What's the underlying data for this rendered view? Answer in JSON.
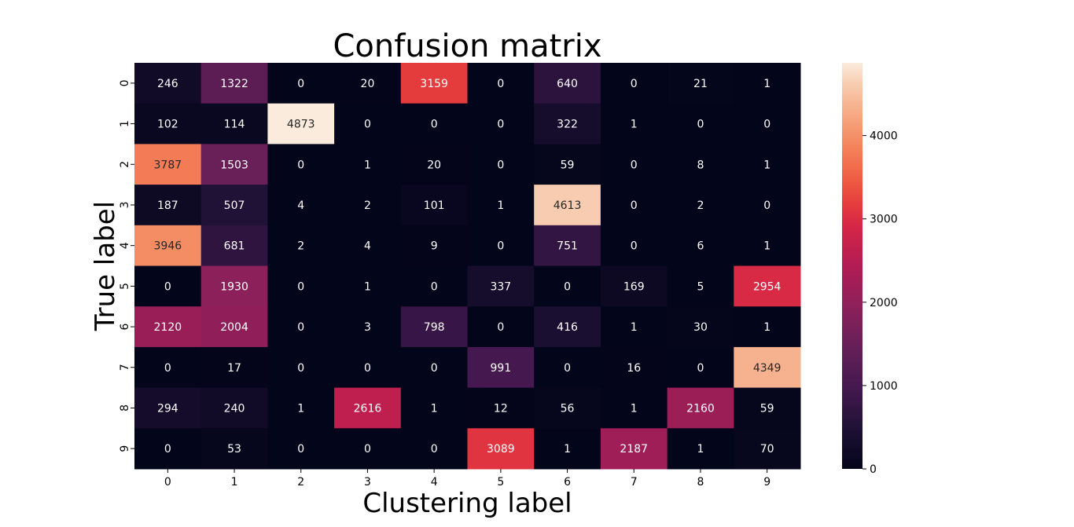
{
  "chart_data": {
    "type": "heatmap",
    "title": "Confusion matrix",
    "xlabel": "Clustering label",
    "ylabel": "True label",
    "x_categories": [
      "0",
      "1",
      "2",
      "3",
      "4",
      "5",
      "6",
      "7",
      "8",
      "9"
    ],
    "y_categories": [
      "0",
      "1",
      "2",
      "3",
      "4",
      "5",
      "6",
      "7",
      "8",
      "9"
    ],
    "values": [
      [
        246,
        1322,
        0,
        20,
        3159,
        0,
        640,
        0,
        21,
        1
      ],
      [
        102,
        114,
        4873,
        0,
        0,
        0,
        322,
        1,
        0,
        0
      ],
      [
        3787,
        1503,
        0,
        1,
        20,
        0,
        59,
        0,
        8,
        1
      ],
      [
        187,
        507,
        4,
        2,
        101,
        1,
        4613,
        0,
        2,
        0
      ],
      [
        3946,
        681,
        2,
        4,
        9,
        0,
        751,
        0,
        6,
        1
      ],
      [
        0,
        1930,
        0,
        1,
        0,
        337,
        0,
        169,
        5,
        2954
      ],
      [
        2120,
        2004,
        0,
        3,
        798,
        0,
        416,
        1,
        30,
        1
      ],
      [
        0,
        17,
        0,
        0,
        0,
        991,
        0,
        16,
        0,
        4349
      ],
      [
        294,
        240,
        1,
        2616,
        1,
        12,
        56,
        1,
        2160,
        59
      ],
      [
        0,
        53,
        0,
        0,
        0,
        3089,
        1,
        2187,
        1,
        70
      ]
    ],
    "colormap": "rocket",
    "colorbar": {
      "range": [
        0,
        4873
      ],
      "ticks": [
        0,
        1000,
        2000,
        3000,
        4000
      ],
      "tick_labels": [
        "0",
        "1000",
        "2000",
        "3000",
        "4000"
      ]
    },
    "grid": false,
    "legend": "colorbar-right"
  }
}
